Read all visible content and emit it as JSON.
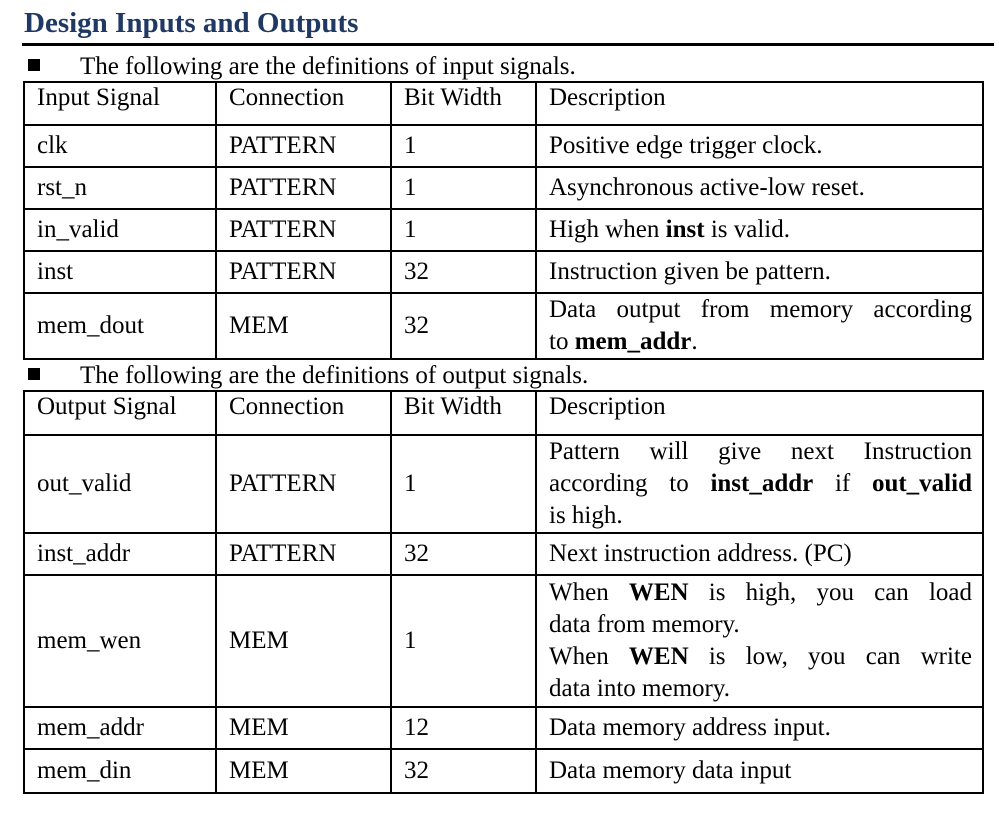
{
  "section": {
    "title": "Design Inputs and Outputs"
  },
  "inputs": {
    "intro": "The following are the definitions of input signals.",
    "headers": [
      "Input Signal",
      "Connection",
      "Bit Width",
      "Description"
    ],
    "rows": [
      {
        "signal": "clk",
        "connection": "PATTERN",
        "width": "1",
        "description": "Positive edge trigger clock."
      },
      {
        "signal": "rst_n",
        "connection": "PATTERN",
        "width": "1",
        "description": "Asynchronous active-low reset."
      },
      {
        "signal": "in_valid",
        "connection": "PATTERN",
        "width": "1",
        "description_pre": "High when ",
        "description_bold": "inst",
        "description_post": " is valid."
      },
      {
        "signal": "inst",
        "connection": "PATTERN",
        "width": "32",
        "description": "Instruction given be pattern."
      },
      {
        "signal": "mem_dout",
        "connection": "MEM",
        "width": "32",
        "description_line1": "Data output from memory according",
        "description_pre": "to ",
        "description_bold": "mem_addr",
        "description_post": "."
      }
    ]
  },
  "outputs": {
    "intro": "The following are the definitions of output signals.",
    "headers": [
      "Output Signal",
      "Connection",
      "Bit Width",
      "Description"
    ],
    "rows": [
      {
        "signal": "out_valid",
        "connection": "PATTERN",
        "width": "1",
        "d_line1": "Pattern will give next Instruction",
        "d_line2_pre": "according to ",
        "d_line2_bold1": "inst_addr",
        "d_line2_mid": " if ",
        "d_line2_bold2": "out_valid",
        "d_line3": "is high."
      },
      {
        "signal": "inst_addr",
        "connection": "PATTERN",
        "width": "32",
        "description": "Next instruction address. (PC)"
      },
      {
        "signal": "mem_wen",
        "connection": "MEM",
        "width": "1",
        "d_line1_pre": "When ",
        "d_line1_bold": "WEN",
        "d_line1_post": " is high, you can load",
        "d_line2": "data from memory.",
        "d_line3_pre": "When ",
        "d_line3_bold": "WEN",
        "d_line3_post": " is low, you can write",
        "d_line4": "data into memory."
      },
      {
        "signal": "mem_addr",
        "connection": "MEM",
        "width": "12",
        "description": "Data memory address input."
      },
      {
        "signal": "mem_din",
        "connection": "MEM",
        "width": "32",
        "description": "Data memory data input"
      }
    ]
  }
}
